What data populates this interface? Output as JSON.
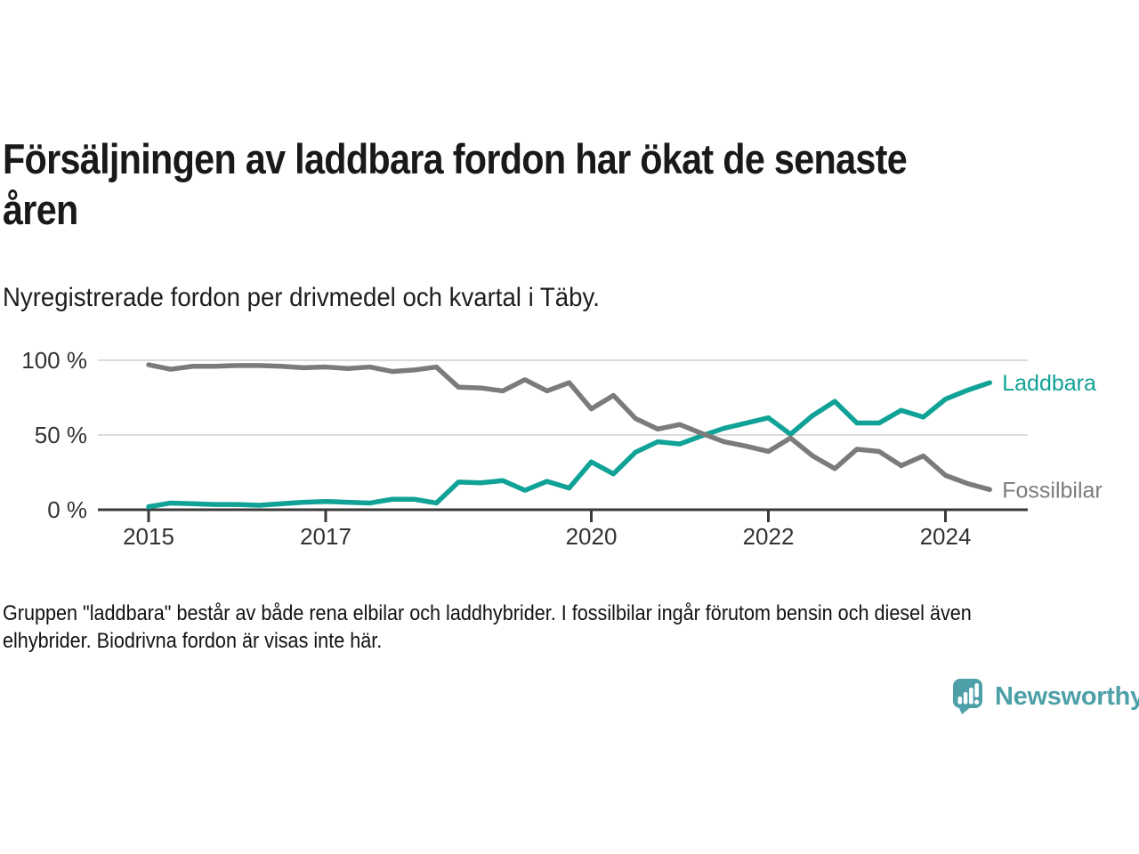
{
  "header": {
    "title": "Försäljningen av laddbara fordon har ökat de senaste åren",
    "title_lines": [
      "Försäljningen av laddbara fordon har ökat de senaste",
      "åren"
    ],
    "subtitle": "Nyregistrerade fordon per drivmedel och kvartal i Täby."
  },
  "footnote": {
    "text": "Gruppen \"laddbara\" består av både rena elbilar och laddhybrider. I fossilbilar ingår förutom bensin och diesel även elhybrider. Biodrivna fordon är visas inte här.",
    "lines": [
      "Gruppen \"laddbara\" består av både rena elbilar och laddhybrider. I fossilbilar ingår förutom bensin och diesel även",
      "elhybrider. Biodrivna fordon är visas inte här."
    ]
  },
  "branding": {
    "wordmark": "Newsworthy",
    "logo_color": "#4da0a8"
  },
  "chart_data": {
    "type": "line",
    "x_unit": "quarter",
    "x_start": "2015 Q1",
    "x_end": "2024 Q3",
    "ylim": [
      0,
      100
    ],
    "grid": "horizontal",
    "legend_position": "line-end-labels",
    "categories": [
      "2015 Q1",
      "2015 Q2",
      "2015 Q3",
      "2015 Q4",
      "2016 Q1",
      "2016 Q2",
      "2016 Q3",
      "2016 Q4",
      "2017 Q1",
      "2017 Q2",
      "2017 Q3",
      "2017 Q4",
      "2018 Q1",
      "2018 Q2",
      "2018 Q3",
      "2018 Q4",
      "2019 Q1",
      "2019 Q2",
      "2019 Q3",
      "2019 Q4",
      "2020 Q1",
      "2020 Q2",
      "2020 Q3",
      "2020 Q4",
      "2021 Q1",
      "2021 Q2",
      "2021 Q3",
      "2021 Q4",
      "2022 Q1",
      "2022 Q2",
      "2022 Q3",
      "2022 Q4",
      "2023 Q1",
      "2023 Q2",
      "2023 Q3",
      "2023 Q4",
      "2024 Q1",
      "2024 Q2",
      "2024 Q3"
    ],
    "series": [
      {
        "name": "Laddbara",
        "color": "#10a296",
        "values": [
          2,
          4.5,
          4,
          3.5,
          3.5,
          3,
          4,
          5,
          5.5,
          5,
          4.5,
          7,
          7,
          4.5,
          18.5,
          18,
          19.5,
          13,
          19,
          14.5,
          32,
          24,
          38.5,
          45.5,
          44,
          49.5,
          54.5,
          58,
          61.5,
          50.5,
          63,
          72.5,
          58,
          58,
          66.5,
          62,
          74,
          80,
          85
        ]
      },
      {
        "name": "Fossilbilar",
        "color": "#7b7b7b",
        "values": [
          97,
          94,
          96,
          96,
          96.5,
          96.5,
          96,
          95,
          95.5,
          94.5,
          95.5,
          92.5,
          93.5,
          95.5,
          82,
          81.5,
          79.5,
          87,
          79.5,
          85,
          67.5,
          76.5,
          61,
          54,
          57,
          51,
          45.5,
          42.5,
          39,
          48,
          36,
          27.5,
          40.5,
          39,
          29.5,
          36,
          23,
          17.5,
          13.5
        ]
      }
    ],
    "y_ticks": [
      {
        "value": 100,
        "label": "100 %"
      },
      {
        "value": 50,
        "label": "50 %"
      },
      {
        "value": 0,
        "label": "0 %"
      }
    ],
    "x_ticks": [
      {
        "index": 0,
        "label": "2015"
      },
      {
        "index": 8,
        "label": "2017"
      },
      {
        "index": 20,
        "label": "2020"
      },
      {
        "index": 28,
        "label": "2022"
      },
      {
        "index": 36,
        "label": "2024"
      }
    ]
  }
}
